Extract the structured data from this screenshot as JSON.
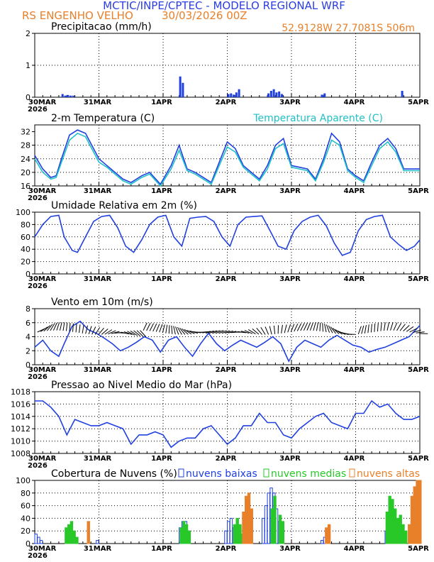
{
  "header": {
    "title": "MCTIC/INPE/CPTEC - MODELO REGIONAL WRF",
    "station": "RS ENGENHO VELHO",
    "date": "30/03/2026 00Z",
    "coords": "52.9128W 27.7081S 506m"
  },
  "colors": {
    "title": "#2a3de0",
    "orange": "#e8802a",
    "blue": "#2040e0",
    "cyan": "#20c0c8",
    "green": "#28c828",
    "black": "#000000"
  },
  "x_axis": {
    "day_labels": [
      "30MAR",
      "31MAR",
      "1APR",
      "2APR",
      "3APR",
      "4APR",
      "5APR"
    ],
    "year_label": "2026",
    "range_hours": [
      0,
      144
    ]
  },
  "chart_data": [
    {
      "type": "bar",
      "title": "Precipitacao (mm/h)",
      "ylim": [
        0,
        2
      ],
      "yticks": [
        0,
        1,
        2
      ],
      "x_hours": [
        10,
        11,
        12,
        13,
        14,
        54,
        55,
        72,
        73,
        74,
        75,
        76,
        87,
        88,
        89,
        90,
        91,
        92,
        107,
        108,
        137
      ],
      "values": [
        0.1,
        0.05,
        0.07,
        0.05,
        0.05,
        0.65,
        0.45,
        0.1,
        0.12,
        0.08,
        0.15,
        0.25,
        0.12,
        0.2,
        0.25,
        0.15,
        0.18,
        0.1,
        0.08,
        0.12,
        0.2
      ]
    },
    {
      "type": "line",
      "title": "2-m Temperatura (C)",
      "legend": "Temperatura Aparente (C)",
      "ylim": [
        16,
        34
      ],
      "yticks": [
        16,
        20,
        24,
        28,
        32
      ],
      "series": [
        {
          "name": "2-m Temperatura (C)",
          "color": "blue",
          "x": [
            0,
            3,
            6,
            8,
            10,
            13,
            16,
            19,
            24,
            27,
            30,
            33,
            36,
            40,
            43,
            47,
            51,
            54,
            57,
            60,
            63,
            66,
            69,
            72,
            75,
            78,
            81,
            84,
            87,
            90,
            93,
            96,
            99,
            102,
            105,
            108,
            111,
            114,
            117,
            120,
            123,
            126,
            129,
            132,
            135,
            138,
            141,
            144
          ],
          "y": [
            25,
            21,
            18.5,
            19,
            24,
            31,
            32.5,
            31.5,
            24,
            22,
            20,
            18,
            17,
            19,
            20,
            16.5,
            22,
            28,
            21,
            20,
            18.5,
            17,
            23,
            29,
            27,
            22,
            20,
            18,
            22,
            28,
            30,
            22,
            21.5,
            21,
            18,
            24,
            31.5,
            29,
            21,
            19,
            17.5,
            23,
            28,
            30,
            27,
            21,
            21,
            21
          ]
        },
        {
          "name": "Temperatura Aparente (C)",
          "color": "cyan",
          "x": [
            0,
            3,
            6,
            8,
            10,
            13,
            16,
            19,
            24,
            27,
            30,
            33,
            36,
            40,
            43,
            47,
            51,
            54,
            57,
            60,
            63,
            66,
            69,
            72,
            75,
            78,
            81,
            84,
            87,
            90,
            93,
            96,
            99,
            102,
            105,
            108,
            111,
            114,
            117,
            120,
            123,
            126,
            129,
            132,
            135,
            138,
            141,
            144
          ],
          "y": [
            24,
            20,
            18,
            18.5,
            23,
            29.5,
            31.5,
            30.5,
            23,
            21.5,
            19.5,
            17.5,
            16.5,
            18.5,
            19.5,
            16,
            21,
            26.5,
            20.5,
            19.5,
            18,
            16.5,
            22,
            27.5,
            26,
            21.5,
            19.5,
            17.5,
            21,
            27,
            28.5,
            21.5,
            21,
            20.5,
            17.5,
            23,
            29.5,
            28,
            20.5,
            18.5,
            17,
            22,
            27,
            29,
            26,
            20.5,
            20.5,
            20.5
          ]
        }
      ]
    },
    {
      "type": "line",
      "title": "Umidade Relativa em 2m (%)",
      "ylim": [
        0,
        100
      ],
      "yticks": [
        0,
        20,
        40,
        60,
        80,
        100
      ],
      "series": [
        {
          "name": "Umidade Relativa (%)",
          "color": "blue",
          "x": [
            0,
            3,
            6,
            9,
            11,
            14,
            16,
            19,
            22,
            25,
            28,
            31,
            34,
            37,
            40,
            43,
            46,
            49,
            52,
            55,
            58,
            61,
            64,
            67,
            70,
            73,
            76,
            79,
            82,
            85,
            88,
            91,
            94,
            97,
            100,
            103,
            106,
            109,
            112,
            115,
            118,
            121,
            124,
            127,
            130,
            133,
            136,
            139,
            142,
            144
          ],
          "y": [
            60,
            80,
            93,
            95,
            60,
            38,
            35,
            60,
            85,
            93,
            95,
            75,
            45,
            35,
            55,
            80,
            92,
            95,
            60,
            45,
            90,
            92,
            93,
            85,
            60,
            45,
            80,
            92,
            93,
            94,
            70,
            45,
            40,
            70,
            85,
            92,
            95,
            78,
            50,
            30,
            35,
            70,
            88,
            93,
            95,
            60,
            48,
            38,
            45,
            55
          ]
        }
      ]
    },
    {
      "type": "line",
      "title": "Vento em 10m (m/s)",
      "ylim": [
        0,
        8
      ],
      "yticks": [
        0,
        2,
        4,
        6,
        8
      ],
      "series": [
        {
          "name": "Vento em 10m (m/s)",
          "color": "blue",
          "x": [
            0,
            3,
            6,
            9,
            11,
            14,
            17,
            20,
            23,
            26,
            29,
            32,
            35,
            38,
            41,
            44,
            47,
            50,
            53,
            56,
            59,
            62,
            65,
            68,
            71,
            74,
            77,
            80,
            83,
            86,
            89,
            92,
            95,
            98,
            101,
            104,
            107,
            110,
            113,
            116,
            119,
            122,
            125,
            128,
            131,
            134,
            137,
            140,
            144
          ],
          "y": [
            2.5,
            3.5,
            2,
            1.2,
            3,
            5.5,
            6.2,
            5,
            4.5,
            3.8,
            3,
            2,
            2.5,
            3.2,
            4,
            3.5,
            1.8,
            3.5,
            4,
            2.5,
            1.2,
            3,
            4.5,
            3,
            2,
            2.8,
            3.5,
            3,
            2.5,
            3.2,
            4,
            3,
            0.5,
            2.5,
            3.5,
            3,
            2.5,
            3.5,
            4.2,
            3.5,
            2.8,
            2.5,
            1.8,
            2.2,
            2.5,
            3,
            3.5,
            4,
            5.6
          ]
        }
      ]
    },
    {
      "type": "line",
      "title": "Pressao ao Nivel Medio do Mar (hPa)",
      "ylim": [
        1008,
        1018
      ],
      "yticks": [
        1008,
        1010,
        1012,
        1014,
        1016,
        1018
      ],
      "series": [
        {
          "name": "Pressao (hPa)",
          "color": "blue",
          "x": [
            0,
            3,
            6,
            9,
            12,
            15,
            18,
            21,
            24,
            27,
            30,
            33,
            36,
            39,
            42,
            45,
            48,
            51,
            54,
            57,
            60,
            63,
            66,
            69,
            72,
            75,
            78,
            81,
            84,
            87,
            90,
            93,
            96,
            99,
            102,
            105,
            108,
            111,
            114,
            117,
            120,
            123,
            126,
            129,
            132,
            135,
            138,
            141,
            144
          ],
          "y": [
            1016.5,
            1016.5,
            1015.5,
            1014,
            1011,
            1013.5,
            1013,
            1012.5,
            1012.5,
            1013,
            1012.5,
            1012,
            1009.5,
            1011,
            1011,
            1011.5,
            1011,
            1009,
            1010,
            1010.5,
            1010.5,
            1012,
            1012.5,
            1011,
            1009.5,
            1010.5,
            1012.5,
            1012.5,
            1014.5,
            1013,
            1013,
            1011,
            1010.5,
            1012,
            1013,
            1014,
            1014.5,
            1013,
            1012.5,
            1012,
            1014.5,
            1014.5,
            1016.5,
            1015.5,
            1016,
            1014.5,
            1013.5,
            1013.5,
            1014
          ]
        }
      ]
    },
    {
      "type": "bar",
      "title": "Cobertura de Nuvens (%)",
      "ylim": [
        0,
        100
      ],
      "yticks": [
        0,
        20,
        40,
        60,
        80,
        100
      ],
      "legend": [
        "nuvens baixas",
        "nuvens medias",
        "nuvens altas"
      ],
      "series": [
        {
          "name": "nuvens baixas",
          "color": "blue",
          "outline": true,
          "x": [
            0,
            1,
            2,
            23,
            54,
            55,
            56,
            57,
            71,
            72,
            73,
            74,
            75,
            85,
            86,
            87,
            88,
            89,
            90,
            91,
            92,
            107,
            108,
            131,
            132,
            133,
            134,
            135,
            136,
            137,
            138
          ],
          "values": [
            15,
            10,
            5,
            5,
            25,
            35,
            35,
            20,
            20,
            35,
            40,
            25,
            10,
            40,
            60,
            80,
            88,
            80,
            55,
            35,
            15,
            5,
            10,
            20,
            45,
            40,
            30,
            25,
            20,
            15,
            10
          ]
        },
        {
          "name": "nuvens medias",
          "color": "green",
          "x": [
            11,
            12,
            13,
            14,
            15,
            54,
            55,
            56,
            57,
            74,
            75,
            76,
            77,
            88,
            89,
            91,
            92,
            131,
            132,
            133,
            134,
            135,
            136,
            137,
            138
          ],
          "values": [
            25,
            30,
            35,
            20,
            10,
            25,
            35,
            30,
            20,
            30,
            40,
            30,
            15,
            55,
            75,
            45,
            35,
            50,
            75,
            70,
            55,
            40,
            45,
            30,
            20
          ]
        },
        {
          "name": "nuvens altas",
          "color": "orange",
          "x": [
            19,
            77,
            78,
            79,
            80,
            108,
            109,
            139,
            140,
            141,
            142,
            143
          ],
          "values": [
            35,
            50,
            75,
            80,
            55,
            25,
            30,
            30,
            75,
            90,
            100,
            100
          ]
        }
      ]
    }
  ]
}
